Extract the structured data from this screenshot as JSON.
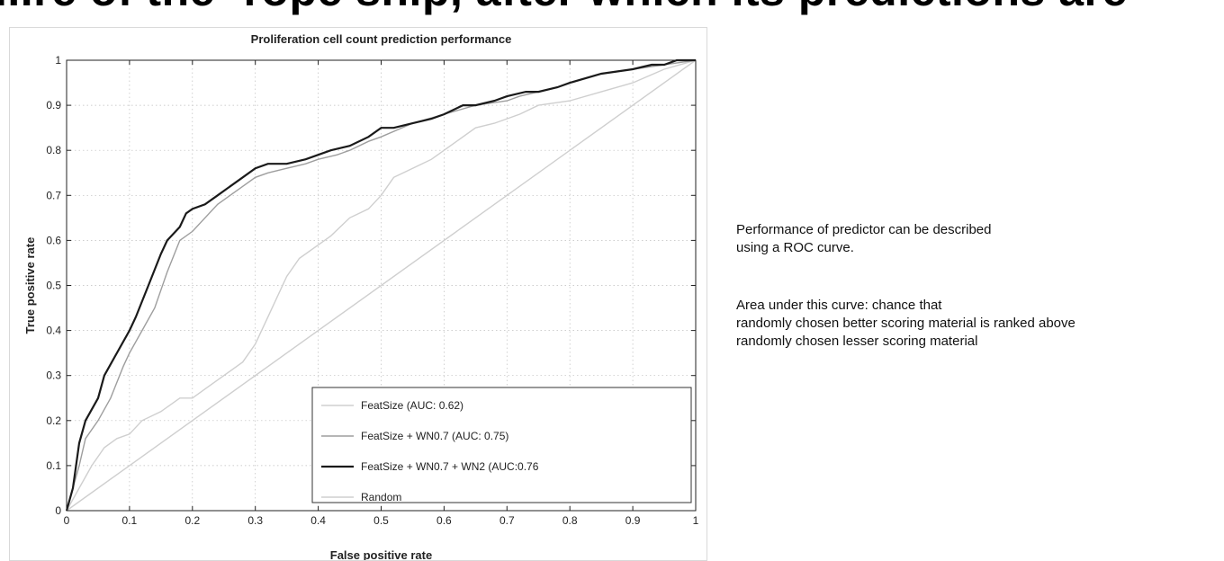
{
  "slide": {
    "banner_text": "...re of the ·rope ship, after which its predictions are",
    "paragraph_1": [
      "Performance of predictor can be described",
      "using a ROC curve."
    ],
    "paragraph_2": [
      "Area under this curve: chance that",
      "randomly chosen better scoring material is ranked above",
      "randomly chosen lesser scoring material"
    ]
  },
  "chart_data": {
    "type": "line",
    "title": "Proliferation cell count prediction performance",
    "xlabel": "False positive rate",
    "ylabel": "True positive rate",
    "xlim": [
      0,
      1
    ],
    "ylim": [
      0,
      1
    ],
    "xticks": [
      "0",
      "0.1",
      "0.2",
      "0.3",
      "0.4",
      "0.5",
      "0.6",
      "0.7",
      "0.8",
      "0.9",
      "1"
    ],
    "yticks": [
      "0",
      "0.1",
      "0.2",
      "0.3",
      "0.4",
      "0.5",
      "0.6",
      "0.7",
      "0.8",
      "0.9",
      "1"
    ],
    "grid": true,
    "legend_position": "bottom-right",
    "series": [
      {
        "name": "FeatSize (AUC: 0.62)",
        "color": "#cfcfcf",
        "x": [
          0,
          0.02,
          0.04,
          0.06,
          0.08,
          0.1,
          0.12,
          0.15,
          0.18,
          0.2,
          0.22,
          0.25,
          0.28,
          0.3,
          0.32,
          0.35,
          0.37,
          0.4,
          0.42,
          0.45,
          0.48,
          0.5,
          0.52,
          0.55,
          0.58,
          0.6,
          0.62,
          0.65,
          0.68,
          0.7,
          0.72,
          0.75,
          0.8,
          0.85,
          0.9,
          0.95,
          1
        ],
        "y": [
          0,
          0.05,
          0.1,
          0.14,
          0.16,
          0.17,
          0.2,
          0.22,
          0.25,
          0.25,
          0.27,
          0.3,
          0.33,
          0.37,
          0.43,
          0.52,
          0.56,
          0.59,
          0.61,
          0.65,
          0.67,
          0.7,
          0.74,
          0.76,
          0.78,
          0.8,
          0.82,
          0.85,
          0.86,
          0.87,
          0.88,
          0.9,
          0.91,
          0.93,
          0.95,
          0.98,
          1
        ]
      },
      {
        "name": "FeatSize + WN0.7 (AUC: 0.75)",
        "color": "#9e9e9e",
        "x": [
          0,
          0.02,
          0.03,
          0.05,
          0.07,
          0.09,
          0.1,
          0.12,
          0.14,
          0.16,
          0.18,
          0.2,
          0.22,
          0.24,
          0.26,
          0.28,
          0.3,
          0.32,
          0.35,
          0.38,
          0.4,
          0.43,
          0.45,
          0.48,
          0.5,
          0.55,
          0.6,
          0.65,
          0.7,
          0.72,
          0.75,
          0.78,
          0.8,
          0.85,
          0.9,
          0.95,
          1
        ],
        "y": [
          0,
          0.1,
          0.16,
          0.2,
          0.25,
          0.32,
          0.35,
          0.4,
          0.45,
          0.53,
          0.6,
          0.62,
          0.65,
          0.68,
          0.7,
          0.72,
          0.74,
          0.75,
          0.76,
          0.77,
          0.78,
          0.79,
          0.8,
          0.82,
          0.83,
          0.86,
          0.88,
          0.9,
          0.91,
          0.92,
          0.93,
          0.94,
          0.95,
          0.97,
          0.98,
          0.99,
          1
        ]
      },
      {
        "name": "FeatSize + WN0.7 + WN2 (AUC:0.76",
        "color": "#1a1a1a",
        "x": [
          0,
          0.01,
          0.02,
          0.03,
          0.05,
          0.06,
          0.08,
          0.1,
          0.11,
          0.13,
          0.15,
          0.16,
          0.18,
          0.19,
          0.2,
          0.22,
          0.24,
          0.26,
          0.28,
          0.3,
          0.32,
          0.35,
          0.38,
          0.4,
          0.42,
          0.45,
          0.48,
          0.5,
          0.52,
          0.55,
          0.58,
          0.6,
          0.63,
          0.65,
          0.68,
          0.7,
          0.73,
          0.75,
          0.78,
          0.8,
          0.85,
          0.9,
          0.93,
          0.95,
          0.97,
          1
        ],
        "y": [
          0,
          0.05,
          0.15,
          0.2,
          0.25,
          0.3,
          0.35,
          0.4,
          0.43,
          0.5,
          0.57,
          0.6,
          0.63,
          0.66,
          0.67,
          0.68,
          0.7,
          0.72,
          0.74,
          0.76,
          0.77,
          0.77,
          0.78,
          0.79,
          0.8,
          0.81,
          0.83,
          0.85,
          0.85,
          0.86,
          0.87,
          0.88,
          0.9,
          0.9,
          0.91,
          0.92,
          0.93,
          0.93,
          0.94,
          0.95,
          0.97,
          0.98,
          0.99,
          0.99,
          1,
          1
        ]
      },
      {
        "name": "Random",
        "color": "#cfcfcf",
        "x": [
          0,
          1
        ],
        "y": [
          0,
          1
        ]
      }
    ]
  }
}
